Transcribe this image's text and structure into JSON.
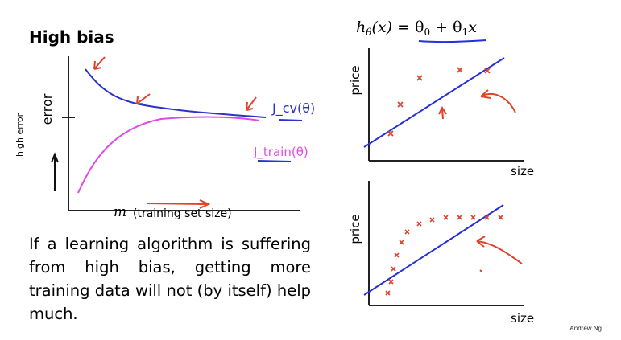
{
  "slide": {
    "title": "High bias",
    "body": "If a learning algorithm is suffering from high bias, getting more training data will not (by itself) help much.",
    "author": "Andrew Ng"
  },
  "learning_curve": {
    "y_axis_label": "error",
    "x_axis_symbol": "m",
    "x_axis_label": "(training set size)",
    "annotations": {
      "cv": "J_cv(θ)",
      "train": "J_train(θ)",
      "side_note": "high error"
    }
  },
  "hypothesis": {
    "h": "h",
    "theta": "θ",
    "x": "x",
    "rhs_a": "= θ",
    "sub0": "0",
    "plus": " + θ",
    "sub1": "1",
    "rhs_x": "x"
  },
  "plot_top": {
    "y_label": "price",
    "x_label": "size"
  },
  "plot_bottom": {
    "y_label": "price",
    "x_label": "size"
  },
  "colors": {
    "cv_curve": "#2b33c9",
    "train_curve": "#e04be6",
    "ink_red": "#e0422a",
    "fit_line": "#2630d8",
    "axis": "#222222"
  },
  "icons": [
    "arrow-annotation-icon",
    "cross-marker-icon"
  ]
}
